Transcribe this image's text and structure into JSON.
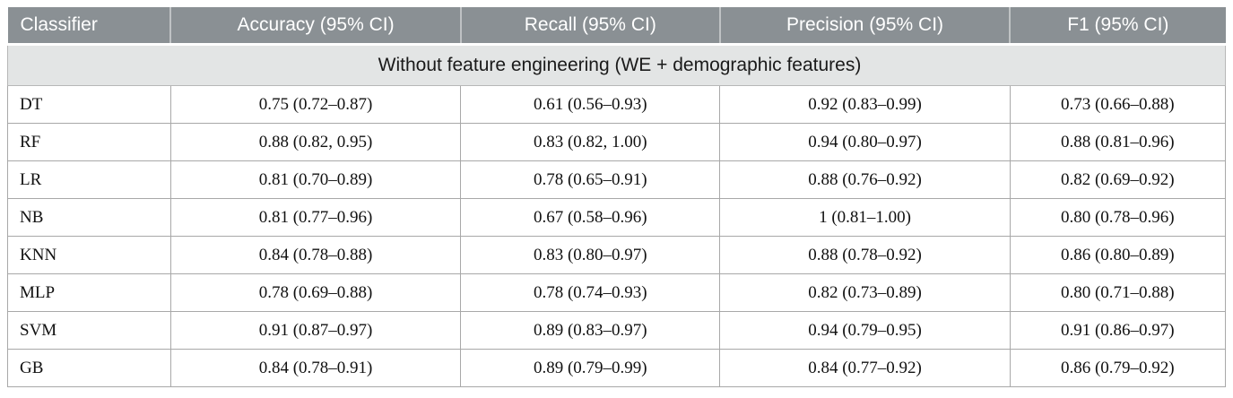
{
  "table": {
    "columns": [
      "Classifier",
      "Accuracy (95% CI)",
      "Recall (95% CI)",
      "Precision (95% CI)",
      "F1 (95% CI)"
    ],
    "section_header": "Without feature engineering (WE + demographic features)",
    "rows": [
      {
        "classifier": "DT",
        "accuracy": "0.75 (0.72–0.87)",
        "recall": "0.61 (0.56–0.93)",
        "precision": "0.92 (0.83–0.99)",
        "f1": "0.73 (0.66–0.88)"
      },
      {
        "classifier": "RF",
        "accuracy": "0.88 (0.82, 0.95)",
        "recall": "0.83 (0.82, 1.00)",
        "precision": "0.94 (0.80–0.97)",
        "f1": "0.88 (0.81–0.96)"
      },
      {
        "classifier": "LR",
        "accuracy": "0.81 (0.70–0.89)",
        "recall": "0.78 (0.65–0.91)",
        "precision": "0.88 (0.76–0.92)",
        "f1": "0.82 (0.69–0.92)"
      },
      {
        "classifier": "NB",
        "accuracy": "0.81 (0.77–0.96)",
        "recall": "0.67 (0.58–0.96)",
        "precision": "1 (0.81–1.00)",
        "f1": "0.80 (0.78–0.96)"
      },
      {
        "classifier": "KNN",
        "accuracy": "0.84 (0.78–0.88)",
        "recall": "0.83 (0.80–0.97)",
        "precision": "0.88 (0.78–0.92)",
        "f1": "0.86 (0.80–0.89)"
      },
      {
        "classifier": "MLP",
        "accuracy": "0.78 (0.69–0.88)",
        "recall": "0.78 (0.74–0.93)",
        "precision": "0.82 (0.73–0.89)",
        "f1": "0.80 (0.71–0.88)"
      },
      {
        "classifier": "SVM",
        "accuracy": "0.91 (0.87–0.97)",
        "recall": "0.89 (0.83–0.97)",
        "precision": "0.94 (0.79–0.95)",
        "f1": "0.91 (0.86–0.97)"
      },
      {
        "classifier": "GB",
        "accuracy": "0.84 (0.78–0.91)",
        "recall": "0.89 (0.79–0.99)",
        "precision": "0.84 (0.77–0.92)",
        "f1": "0.86 (0.79–0.92)"
      }
    ],
    "colors": {
      "header_bg": "#8a9094",
      "header_text": "#ffffff",
      "section_bg": "#e3e5e5",
      "border": "#a8a8a8",
      "body_text": "#111111"
    }
  }
}
